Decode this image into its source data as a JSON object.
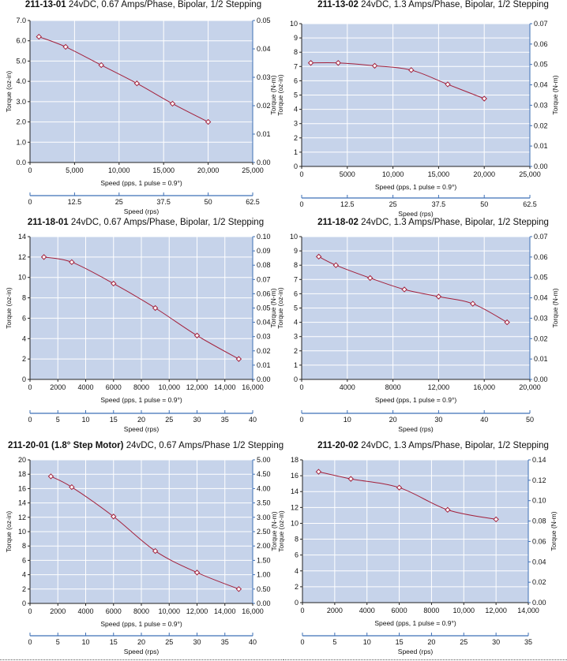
{
  "chart_data": [
    {
      "type": "line",
      "title_bold": "211-13-01",
      "title": "24vDC, 0.67 Amps/Phase, Bipolar, 1/2 Stepping",
      "xlabel": "Speed (pps, 1 pulse = 0.9°)",
      "ylabel": "Torque (oz-in)",
      "y2label": "",
      "x2label": "Speed (rps)",
      "xlim": [
        0,
        25000
      ],
      "xticks": [
        0,
        5000,
        10000,
        15000,
        20000,
        25000
      ],
      "xtick_labels": [
        "0",
        "5,000",
        "10,000",
        "15,000",
        "20,000",
        "25,000"
      ],
      "ylim": [
        0,
        7
      ],
      "yticks": [
        0,
        1,
        2,
        3,
        4,
        5,
        6,
        7
      ],
      "ytick_labels": [
        "0.0",
        "1.0",
        "2.0",
        "3.0",
        "4.0",
        "5.0",
        "6.0",
        "7.0"
      ],
      "y2lim": [
        0,
        0.05
      ],
      "y2ticks": [
        0,
        0.01,
        0.02,
        0.03,
        0.04,
        0.05
      ],
      "y2tick_labels": [
        "0.00",
        "0.01",
        "0.02",
        "0.03",
        "0.04",
        "0.05"
      ],
      "x2lim": [
        0,
        62.5
      ],
      "x2ticks": [
        0,
        12.5,
        25,
        37.5,
        50,
        62.5
      ],
      "x2tick_labels": [
        "0",
        "12.5",
        "25",
        "37.5",
        "50",
        "62.5"
      ],
      "x": [
        1000,
        4000,
        8000,
        12000,
        16000,
        20000
      ],
      "y": [
        6.2,
        5.7,
        4.8,
        3.9,
        2.9,
        2.0
      ],
      "grid": true
    },
    {
      "type": "line",
      "title_bold": "211-13-02",
      "title": "24vDC, 1.3 Amps/Phase, Bipolar, 1/2 Stepping",
      "xlabel": "Speed (pps, 1 pulse = 0.9°)",
      "ylabel": "Torque (oz-in)",
      "y2label": "Torque (N-m)",
      "ylabel_extra": "Torque (N-m)",
      "x2label": "Speed (rps)",
      "xlim": [
        0,
        25000
      ],
      "xticks": [
        0,
        5000,
        10000,
        15000,
        20000,
        25000
      ],
      "xtick_labels": [
        "0",
        "5000",
        "10,000",
        "15,000",
        "20,000",
        "25,000"
      ],
      "ylim": [
        0,
        10
      ],
      "yticks": [
        0,
        1,
        2,
        3,
        4,
        5,
        6,
        7,
        8,
        9,
        10
      ],
      "ytick_labels": [
        "0",
        "1",
        "2",
        "3",
        "4",
        "5",
        "6",
        "7",
        "8",
        "9",
        "10"
      ],
      "y2lim": [
        0,
        0.07
      ],
      "y2ticks": [
        0,
        0.01,
        0.02,
        0.03,
        0.04,
        0.05,
        0.06,
        0.07
      ],
      "y2tick_labels": [
        "0.00",
        "0.01",
        "0.02",
        "0.03",
        "0.04",
        "0.05",
        "0.06",
        "0.07"
      ],
      "x2lim": [
        0,
        62.5
      ],
      "x2ticks": [
        0,
        12.5,
        25,
        37.5,
        50,
        62.5
      ],
      "x2tick_labels": [
        "0",
        "12.5",
        "25",
        "37.5",
        "50",
        "62.5"
      ],
      "x": [
        1000,
        4000,
        8000,
        12000,
        16000,
        20000
      ],
      "y": [
        7.25,
        7.25,
        7.05,
        6.75,
        5.75,
        4.75
      ],
      "grid": true
    },
    {
      "type": "line",
      "title_bold": "211-18-01",
      "title": "24vDC, 0.67 Amps/Phase, Bipolar, 1/2 Stepping",
      "xlabel": "Speed (pps, 1 pulse = 0.9°)",
      "ylabel": "Torque (oz-in)",
      "y2label": "",
      "x2label": "Speed (rps)",
      "xlim": [
        0,
        16000
      ],
      "xticks": [
        0,
        2000,
        4000,
        6000,
        8000,
        10000,
        12000,
        14000,
        16000
      ],
      "xtick_labels": [
        "0",
        "2000",
        "4000",
        "6000",
        "8000",
        "10,000",
        "12,000",
        "14,000",
        "16,000"
      ],
      "ylim": [
        0,
        14
      ],
      "yticks": [
        0,
        2,
        4,
        6,
        8,
        10,
        12,
        14
      ],
      "ytick_labels": [
        "0",
        "2",
        "4",
        "6",
        "8",
        "10",
        "12",
        "14"
      ],
      "y2lim": [
        0,
        0.1
      ],
      "y2ticks": [
        0,
        0.01,
        0.02,
        0.03,
        0.04,
        0.05,
        0.06,
        0.07,
        0.08,
        0.09,
        0.1
      ],
      "y2tick_labels": [
        "0.00",
        "0.01",
        "0.02",
        "0.03",
        "0.04",
        "0.05",
        "0.06",
        "0.07",
        "0.08",
        "0.09",
        "0.10"
      ],
      "x2lim": [
        0,
        40
      ],
      "x2ticks": [
        0,
        5,
        10,
        15,
        20,
        25,
        30,
        35,
        40
      ],
      "x2tick_labels": [
        "0",
        "5",
        "10",
        "15",
        "20",
        "25",
        "30",
        "35",
        "40"
      ],
      "x": [
        1000,
        3000,
        6000,
        9000,
        12000,
        15000
      ],
      "y": [
        12.0,
        11.5,
        9.4,
        7.0,
        4.3,
        2.0
      ],
      "grid": true
    },
    {
      "type": "line",
      "title_bold": "211-18-02",
      "title": "24vDC, 1.3 Amps/Phase, Bipolar, 1/2 Stepping",
      "xlabel": "Speed (pps, 1 pulse = 0.9°)",
      "ylabel": "Torque (oz-in)",
      "y2label": "Torque (N-m)",
      "ylabel_extra": "Torque (N-m)",
      "x2label": "Speed (rps)",
      "xlim": [
        0,
        20000
      ],
      "xticks": [
        0,
        4000,
        8000,
        12000,
        16000,
        20000
      ],
      "xtick_labels": [
        "0",
        "4000",
        "8000",
        "12,000",
        "16,000",
        "20,000"
      ],
      "ylim": [
        0,
        10
      ],
      "yticks": [
        0,
        1,
        2,
        3,
        4,
        5,
        6,
        7,
        8,
        9,
        10
      ],
      "ytick_labels": [
        "0",
        "1",
        "2",
        "3",
        "4",
        "5",
        "6",
        "7",
        "8",
        "9",
        "10"
      ],
      "y2lim": [
        0,
        0.07
      ],
      "y2ticks": [
        0,
        0.01,
        0.02,
        0.03,
        0.04,
        0.05,
        0.06,
        0.07
      ],
      "y2tick_labels": [
        "0.00",
        "0.01",
        "0.02",
        "0.03",
        "0.04",
        "0.05",
        "0.06",
        "0.07"
      ],
      "x2lim": [
        0,
        50
      ],
      "x2ticks": [
        0,
        10,
        20,
        30,
        40,
        50
      ],
      "x2tick_labels": [
        "0",
        "10",
        "20",
        "30",
        "40",
        "50"
      ],
      "x": [
        1500,
        3000,
        6000,
        9000,
        12000,
        15000,
        18000
      ],
      "y": [
        8.6,
        8.0,
        7.1,
        6.3,
        5.8,
        5.3,
        4.0
      ],
      "grid": true
    },
    {
      "type": "line",
      "title_bold": "211-20-01 (1.8° Step Motor)",
      "title": "24vDC, 0.67 Amps/Phase 1/2 Stepping",
      "xlabel": "Speed (pps, 1 pulse = 0.9°)",
      "ylabel": "Torque (oz-in)",
      "y2label": "",
      "x2label": "Speed (rps)",
      "xlim": [
        0,
        16000
      ],
      "xticks": [
        0,
        2000,
        4000,
        6000,
        8000,
        10000,
        12000,
        14000,
        16000
      ],
      "xtick_labels": [
        "0",
        "2000",
        "4000",
        "6000",
        "8000",
        "10,000",
        "12,000",
        "14,000",
        "16,000"
      ],
      "ylim": [
        0,
        20
      ],
      "yticks": [
        0,
        2,
        4,
        6,
        8,
        10,
        12,
        14,
        16,
        18,
        20
      ],
      "ytick_labels": [
        "0",
        "2",
        "4",
        "6",
        "8",
        "10",
        "12",
        "14",
        "16",
        "18",
        "20"
      ],
      "y2lim": [
        0,
        5
      ],
      "y2ticks": [
        0,
        0.5,
        1,
        1.5,
        2,
        2.5,
        3,
        3.5,
        4,
        4.5,
        5
      ],
      "y2tick_labels": [
        "0.00",
        "0.50",
        "1.00",
        "1.50",
        "2.00",
        "2.50",
        "3.00",
        "3.50",
        "4.00",
        "4.50",
        "5.00"
      ],
      "x2lim": [
        0,
        40
      ],
      "x2ticks": [
        0,
        5,
        10,
        15,
        20,
        25,
        30,
        35,
        40
      ],
      "x2tick_labels": [
        "0",
        "5",
        "10",
        "15",
        "20",
        "25",
        "30",
        "35",
        "40"
      ],
      "x": [
        1500,
        3000,
        6000,
        9000,
        12000,
        15000
      ],
      "y": [
        17.7,
        16.2,
        12.1,
        7.3,
        4.3,
        2.0
      ],
      "grid": true
    },
    {
      "type": "line",
      "title_bold": "211-20-02",
      "title": "24vDC, 1.3 Amps/Phase, Bipolar, 1/2 Stepping",
      "xlabel": "Speed (pps, 1 pulse = 0.9°)",
      "ylabel": "Torque (oz-in)",
      "y2label": "Torque (N-m)",
      "ylabel_extra": "Torque (N-m)",
      "x2label": "Speed (rps)",
      "xlim": [
        0,
        14000
      ],
      "xticks": [
        0,
        2000,
        4000,
        6000,
        8000,
        10000,
        12000,
        14000
      ],
      "xtick_labels": [
        "0",
        "2000",
        "4000",
        "6000",
        "8000",
        "10,000",
        "12,000",
        "14,000"
      ],
      "ylim": [
        0,
        18
      ],
      "yticks": [
        0,
        2,
        4,
        6,
        8,
        10,
        12,
        14,
        16,
        18
      ],
      "ytick_labels": [
        "0",
        "2",
        "4",
        "6",
        "8",
        "10",
        "12",
        "14",
        "16",
        "18"
      ],
      "y2lim": [
        0,
        0.14
      ],
      "y2ticks": [
        0,
        0.02,
        0.04,
        0.06,
        0.08,
        0.1,
        0.12,
        0.14
      ],
      "y2tick_labels": [
        "0.00",
        "0.02",
        "0.04",
        "0.06",
        "0.08",
        "0.10",
        "0.12",
        "0.14"
      ],
      "x2lim": [
        0,
        35
      ],
      "x2ticks": [
        0,
        5,
        10,
        15,
        20,
        25,
        30,
        35
      ],
      "x2tick_labels": [
        "0",
        "5",
        "10",
        "15",
        "20",
        "25",
        "30",
        "35"
      ],
      "x": [
        1000,
        3000,
        6000,
        9000,
        12000
      ],
      "y": [
        16.5,
        15.6,
        14.5,
        11.7,
        10.5
      ],
      "grid": true
    }
  ],
  "colors": {
    "plot_bg": "#c6d3ea",
    "grid": "#ffffff",
    "curve": "#a3203b",
    "axis_blue": "#3f70b6",
    "axis_dark": "#222222"
  }
}
